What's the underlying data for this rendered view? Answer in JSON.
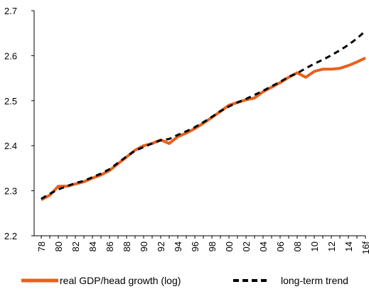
{
  "chart_data": {
    "type": "line",
    "x": [
      "78",
      "79",
      "80",
      "81",
      "82",
      "83",
      "84",
      "85",
      "86",
      "87",
      "88",
      "89",
      "90",
      "91",
      "92",
      "93",
      "94",
      "95",
      "96",
      "97",
      "98",
      "99",
      "00",
      "01",
      "02",
      "03",
      "04",
      "05",
      "06",
      "07",
      "08",
      "09",
      "10",
      "11",
      "12",
      "13",
      "14",
      "15",
      "16f"
    ],
    "xtick_labels": [
      "78",
      "80",
      "82",
      "84",
      "86",
      "88",
      "90",
      "92",
      "94",
      "96",
      "98",
      "00",
      "02",
      "04",
      "06",
      "08",
      "10",
      "12",
      "14",
      "16f"
    ],
    "yticks": [
      "2.2",
      "2.3",
      "2.4",
      "2.5",
      "2.6",
      "2.7"
    ],
    "ylim": [
      2.2,
      2.7
    ],
    "series": [
      {
        "name": "real GDP/head growth (log)",
        "style": "solid",
        "color": "#E8601C",
        "values": [
          2.28,
          2.29,
          2.31,
          2.31,
          2.315,
          2.32,
          2.328,
          2.335,
          2.345,
          2.36,
          2.375,
          2.39,
          2.4,
          2.405,
          2.413,
          2.405,
          2.42,
          2.428,
          2.438,
          2.45,
          2.463,
          2.476,
          2.49,
          2.496,
          2.502,
          2.506,
          2.52,
          2.53,
          2.54,
          2.552,
          2.562,
          2.552,
          2.565,
          2.57,
          2.57,
          2.572,
          2.578,
          2.586,
          2.595
        ]
      },
      {
        "name": "long-term trend",
        "style": "dashed",
        "color": "#000000",
        "values": [
          2.282,
          2.293,
          2.303,
          2.31,
          2.317,
          2.322,
          2.33,
          2.338,
          2.348,
          2.362,
          2.376,
          2.389,
          2.397,
          2.405,
          2.412,
          2.415,
          2.424,
          2.432,
          2.441,
          2.452,
          2.464,
          2.477,
          2.487,
          2.496,
          2.504,
          2.513,
          2.522,
          2.532,
          2.542,
          2.553,
          2.561,
          2.572,
          2.582,
          2.591,
          2.601,
          2.612,
          2.624,
          2.638,
          2.655
        ]
      }
    ],
    "legend": {
      "position": "bottom",
      "entries": [
        {
          "label": "real GDP/head growth (log)",
          "color": "#E8601C",
          "style": "solid"
        },
        {
          "label": "long-term trend",
          "color": "#000000",
          "style": "dashed"
        }
      ]
    },
    "grid": false
  }
}
